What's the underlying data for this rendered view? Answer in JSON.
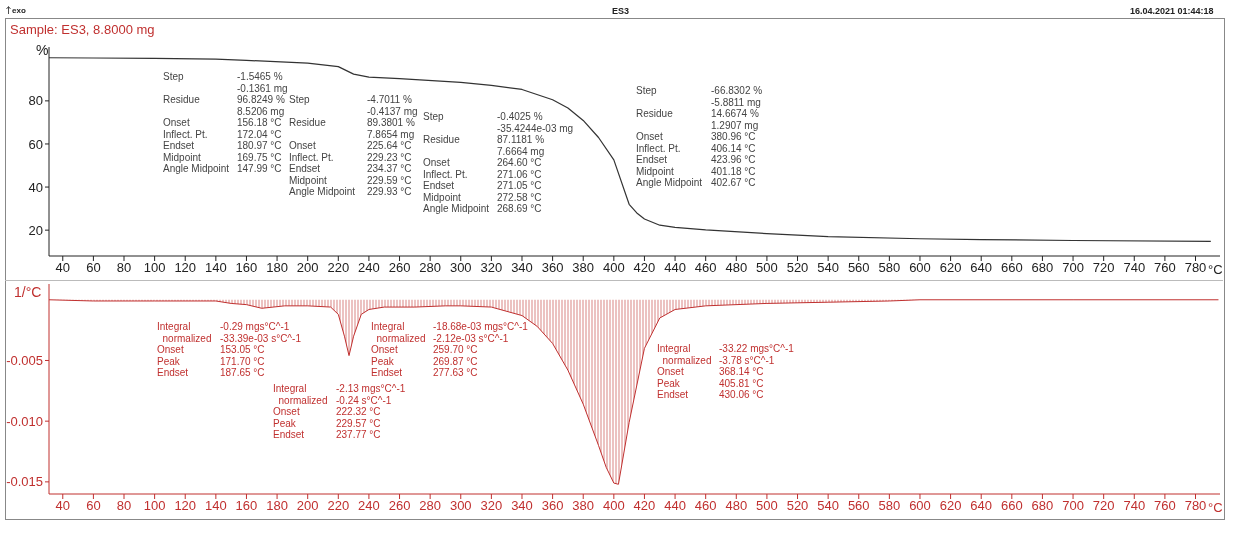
{
  "chart_data": [
    {
      "type": "line",
      "title": "Sample: ES3, 8.8000 mg",
      "xlabel": "°C",
      "ylabel": "%",
      "annotations": [
        "exo",
        "ES3",
        "16.04.2021 01:44:18",
        "Step\t-1.5465 %\n\t-0.1361 mg\nResidue\t96.8249 %\n\t8.5206 mg\nOnset\t156.18 °C\nInflect. Pt.\t172.04 °C\nEndset\t180.97 °C\nMidpoint\t169.75 °C\nAngle Midpoint\t147.99 °C",
        "Step\t-4.7011 %\n\t-0.4137 mg\nResidue\t89.3801 %\n\t7.8654 mg\nOnset\t225.64 °C\nInflect. Pt.\t229.23 °C\nEndset\t234.37 °C\nMidpoint\t229.59 °C\nAngle Midpoint\t229.93 °C",
        "Step\t-0.4025 %\n\t-35.4244e-03 mg\nResidue\t87.1181 %\n\t7.6664 mg\nOnset\t264.60 °C\nInflect. Pt.\t271.06 °C\nEndset\t271.05 °C\nMidpoint\t272.58 °C\nAngle Midpoint\t268.69 °C",
        "Step\t-66.8302 %\n\t-5.8811 mg\nResidue\t14.6674 %\n\t1.2907 mg\nOnset\t380.96 °C\nInflect. Pt.\t406.14 °C\nEndset\t423.96 °C\nMidpoint\t401.18 °C\nAngle Midpoint\t402.67 °C"
      ],
      "xlim": [
        31,
        796
      ],
      "xticks": [
        40,
        60,
        80,
        100,
        120,
        140,
        160,
        180,
        200,
        220,
        240,
        260,
        280,
        300,
        320,
        340,
        360,
        380,
        400,
        420,
        440,
        460,
        480,
        500,
        520,
        540,
        560,
        580,
        600,
        620,
        640,
        660,
        680,
        700,
        720,
        740,
        760,
        780
      ],
      "ylim": [
        8,
        105
      ],
      "yticks": [
        20,
        40,
        60,
        80
      ],
      "series": [
        {
          "color": "#333333",
          "x": [
            31,
            60,
            100,
            140,
            160,
            200,
            220,
            230,
            240,
            260,
            300,
            320,
            340,
            360,
            370,
            380,
            390,
            400,
            410,
            415,
            420,
            430,
            440,
            460,
            500,
            540,
            600,
            640,
            700,
            790
          ],
          "values": [
            100,
            99.9,
            99.7,
            99.4,
            98.8,
            97.5,
            95.9,
            92.4,
            91,
            90.3,
            88.6,
            87.2,
            85.3,
            80.5,
            76.7,
            70.9,
            63,
            52.6,
            32,
            28,
            25.2,
            22.3,
            21.3,
            20.1,
            18.4,
            17,
            16,
            15.6,
            15.2,
            14.8
          ]
        }
      ]
    },
    {
      "type": "area",
      "xlabel": "°C",
      "ylabel": "1/°C",
      "annotations": [
        "Integral\t-0.29 mgs°C^-1\n  normalized\t-33.39e-03 s°C^-1\nOnset\t153.05 °C\nPeak\t171.70 °C\nEndset\t187.65 °C",
        "Integral\t-2.13 mgs°C^-1\n  normalized\t-0.24 s°C^-1\nOnset\t222.32 °C\nPeak\t229.57 °C\nEndset\t237.77 °C",
        "Integral\t-18.68e-03 mgs°C^-1\n  normalized\t-2.12e-03 s°C^-1\nOnset\t259.70 °C\nPeak\t269.87 °C\nEndset\t277.63 °C",
        "Integral\t-33.22 mgs°C^-1\n  normalized\t-3.78 s°C^-1\nOnset\t368.14 °C\nPeak\t405.81 °C\nEndset\t430.06 °C"
      ],
      "xlim": [
        31,
        796
      ],
      "xticks": [
        40,
        60,
        80,
        100,
        120,
        140,
        160,
        180,
        200,
        220,
        240,
        260,
        280,
        300,
        320,
        340,
        360,
        380,
        400,
        420,
        440,
        460,
        480,
        500,
        520,
        540,
        560,
        580,
        600,
        620,
        640,
        660,
        680,
        700,
        720,
        740,
        760,
        780
      ],
      "ylim": [
        -0.016,
        0.0013
      ],
      "yticks": [
        {
          "value": -0.005,
          "label": "-0.005"
        },
        {
          "value": -0.01,
          "label": "-0.010"
        },
        {
          "value": -0.015,
          "label": "-0.015"
        }
      ],
      "series": [
        {
          "color": "#c0302f",
          "x": [
            31,
            60,
            100,
            140,
            150,
            160,
            170,
            185,
            200,
            215,
            220,
            224,
            227,
            230,
            235,
            240,
            250,
            270,
            290,
            300,
            320,
            340,
            350,
            360,
            370,
            380,
            390,
            395,
            400,
            403,
            410,
            420,
            430,
            440,
            460,
            500,
            540,
            580,
            600,
            700,
            795
          ],
          "values": [
            0,
            -0.0001,
            -0.0001,
            -0.0001,
            -0.0003,
            -0.0004,
            -0.0007,
            -0.0005,
            -0.0005,
            -0.0006,
            -0.0012,
            -0.003,
            -0.0046,
            -0.003,
            -0.0012,
            -0.0008,
            -0.0006,
            -0.0006,
            -0.0005,
            -0.0005,
            -0.0006,
            -0.0013,
            -0.0022,
            -0.0036,
            -0.0058,
            -0.0086,
            -0.012,
            -0.0138,
            -0.0151,
            -0.0152,
            -0.0101,
            -0.004,
            -0.0015,
            -0.0008,
            -0.0005,
            -0.0003,
            -0.0002,
            -0.0001,
            0,
            0,
            0
          ]
        }
      ]
    }
  ]
}
